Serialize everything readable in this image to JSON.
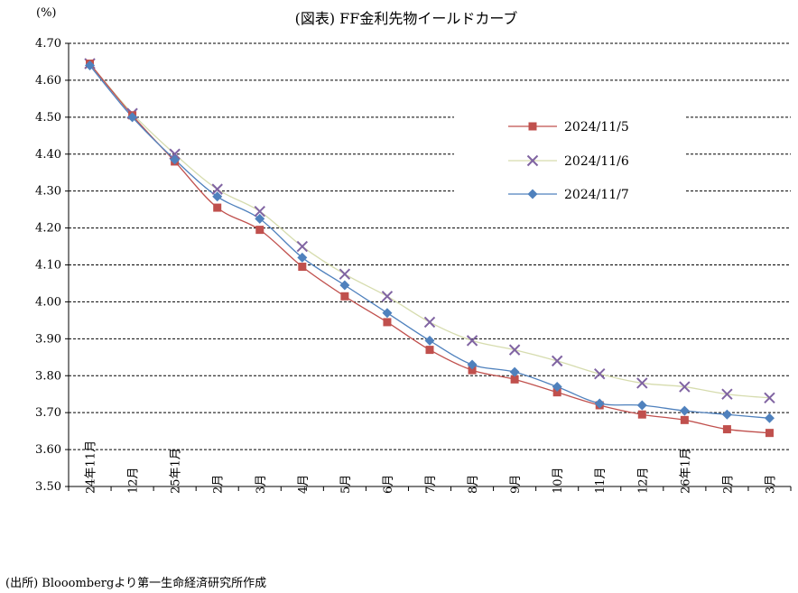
{
  "chart_data": {
    "type": "line",
    "title": "(図表) FF金利先物イールドカーブ",
    "ylabel": "(%)",
    "xlabel": "",
    "ylim": [
      3.5,
      4.7
    ],
    "ytick_step": 0.1,
    "grid": true,
    "legend": "top-right",
    "categories": [
      "24年11月",
      "12月",
      "25年1月",
      "2月",
      "3月",
      "4月",
      "5月",
      "6月",
      "7月",
      "8月",
      "9月",
      "10月",
      "11月",
      "12月",
      "26年1月",
      "2月",
      "3月"
    ],
    "series": [
      {
        "name": "2024/11/5",
        "color": "#c0504d",
        "marker": "square",
        "values": [
          4.645,
          4.505,
          4.38,
          4.255,
          4.195,
          4.095,
          4.015,
          3.945,
          3.87,
          3.815,
          3.79,
          3.755,
          3.72,
          3.695,
          3.68,
          3.655,
          3.645
        ]
      },
      {
        "name": "2024/11/6",
        "color": "#d6dcae",
        "markerColor": "#8064a2",
        "marker": "x",
        "values": [
          4.645,
          4.51,
          4.4,
          4.305,
          4.245,
          4.15,
          4.075,
          4.015,
          3.945,
          3.895,
          3.87,
          3.84,
          3.805,
          3.78,
          3.77,
          3.75,
          3.74
        ]
      },
      {
        "name": "2024/11/7",
        "color": "#4f81bd",
        "marker": "diamond",
        "values": [
          4.64,
          4.5,
          4.385,
          4.285,
          4.225,
          4.12,
          4.045,
          3.97,
          3.895,
          3.83,
          3.81,
          3.77,
          3.725,
          3.72,
          3.705,
          3.695,
          3.685
        ]
      }
    ]
  },
  "source": "(出所) Blooombergより第一生命経済研究所作成"
}
